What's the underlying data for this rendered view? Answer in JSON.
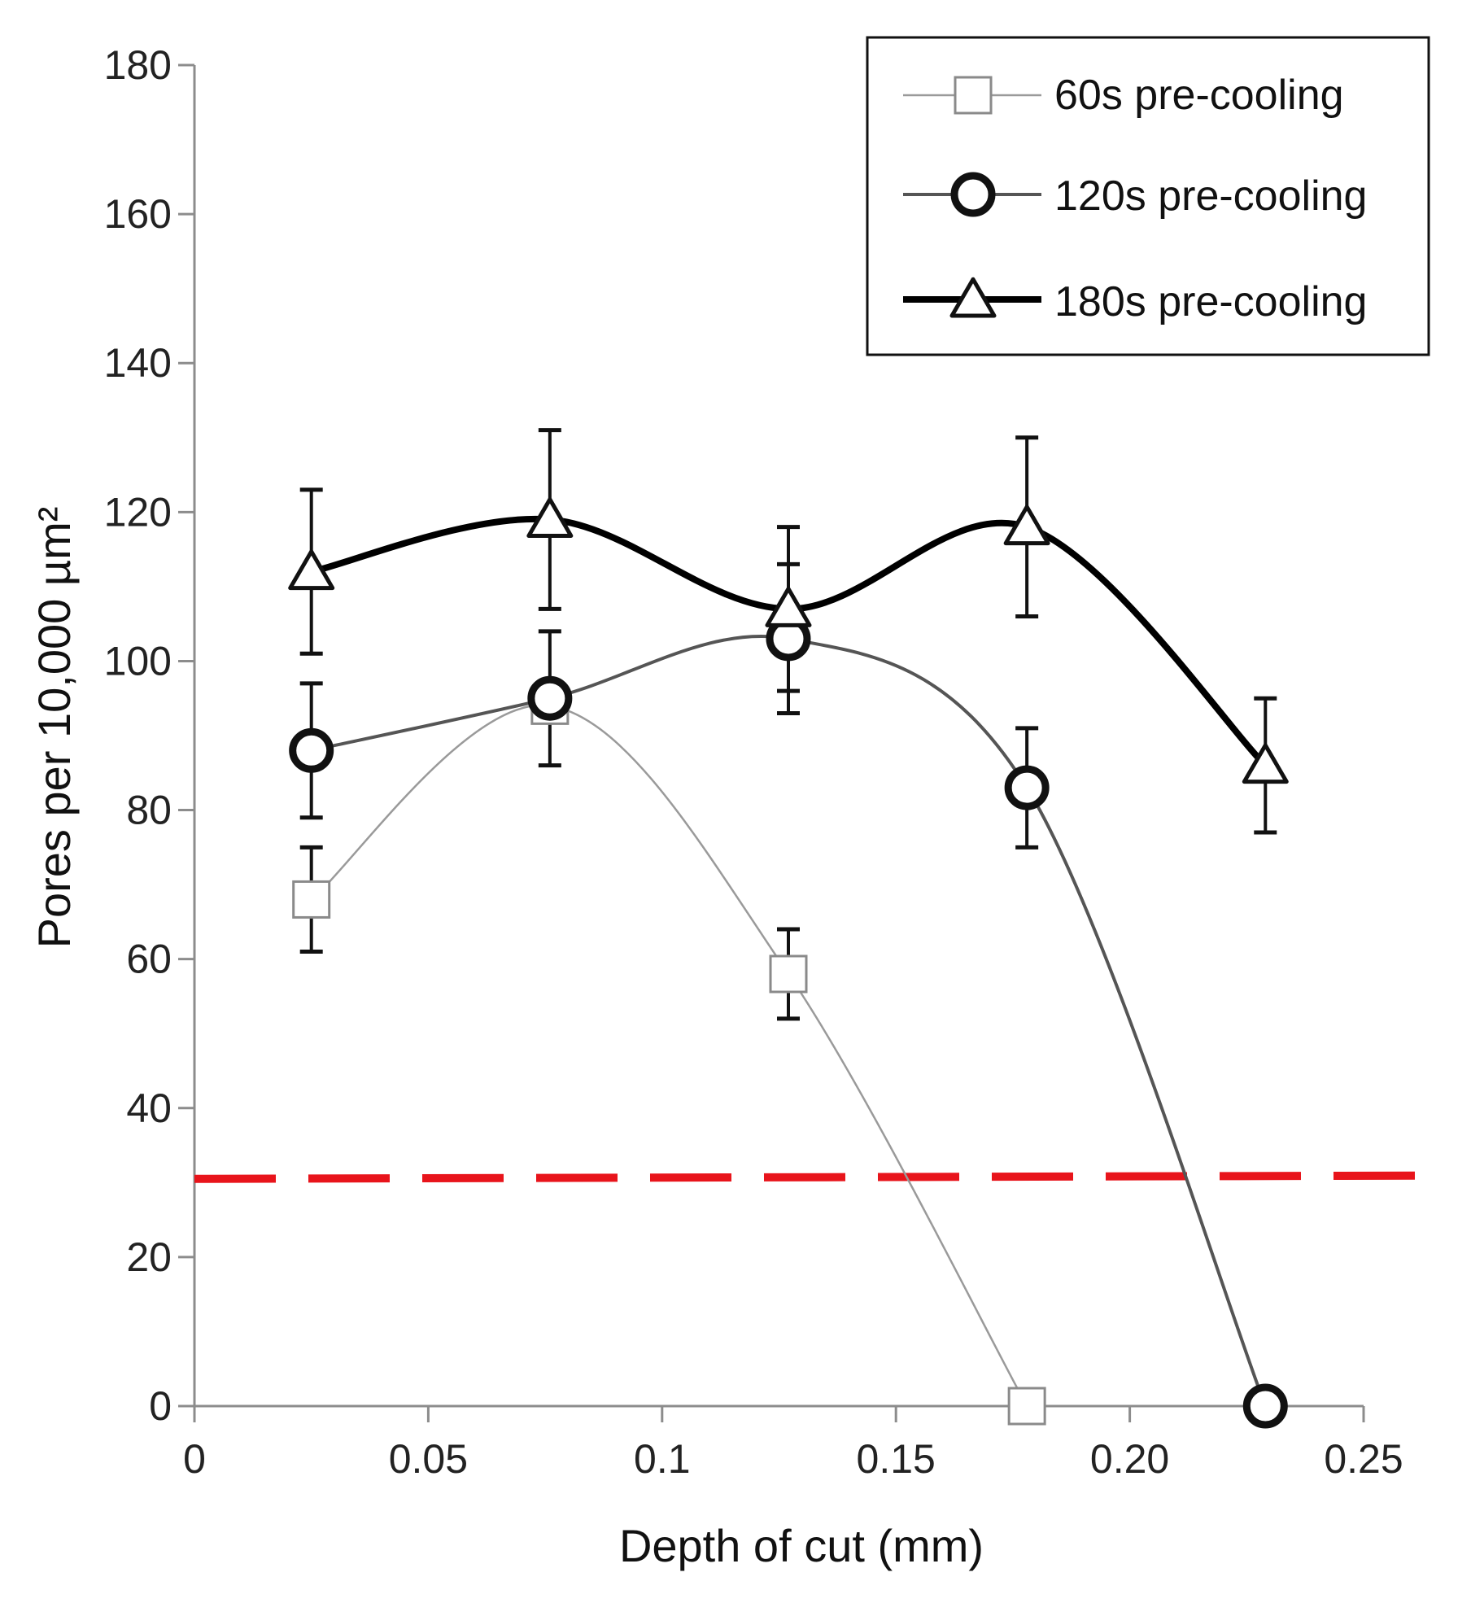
{
  "chart_data": {
    "type": "line",
    "title": "",
    "xlabel": "Depth of cut (mm)",
    "ylabel": "Pores per 10,000 µm²",
    "xlim": [
      0,
      0.25
    ],
    "ylim": [
      0,
      180
    ],
    "x_ticks": [
      0,
      0.05,
      0.1,
      0.15,
      0.2,
      0.25
    ],
    "x_tick_labels": [
      "0",
      "0.05",
      "0.1",
      "0.15",
      "0.20",
      "0.25"
    ],
    "y_ticks": [
      0,
      20,
      40,
      60,
      80,
      100,
      120,
      140,
      160,
      180
    ],
    "y_tick_labels": [
      "0",
      "20",
      "40",
      "60",
      "80",
      "100",
      "120",
      "140",
      "160",
      "180"
    ],
    "grid": false,
    "legend_position": "top-right",
    "reference_line": {
      "y": 30.5,
      "color": "#e8141b",
      "style": "dashed"
    },
    "series": [
      {
        "name": "60s pre-cooling",
        "marker": "square",
        "line_color": "#9a9a9a",
        "marker_edge": "#8a8a8a",
        "x": [
          0.025,
          0.076,
          0.127,
          0.178
        ],
        "values": [
          68,
          94,
          58,
          0
        ],
        "error": [
          7,
          0,
          6,
          0
        ]
      },
      {
        "name": "120s pre-cooling",
        "marker": "circle",
        "line_color": "#555555",
        "marker_edge": "#111111",
        "x": [
          0.025,
          0.076,
          0.127,
          0.178,
          0.229
        ],
        "values": [
          88,
          95,
          103,
          83,
          0
        ],
        "error": [
          9,
          9,
          10,
          8,
          0
        ]
      },
      {
        "name": "180s pre-cooling",
        "marker": "triangle",
        "line_color": "#000000",
        "marker_edge": "#111111",
        "x": [
          0.025,
          0.076,
          0.127,
          0.178,
          0.229
        ],
        "values": [
          112,
          119,
          107,
          118,
          86
        ],
        "error": [
          11,
          12,
          11,
          12,
          9
        ]
      }
    ]
  }
}
